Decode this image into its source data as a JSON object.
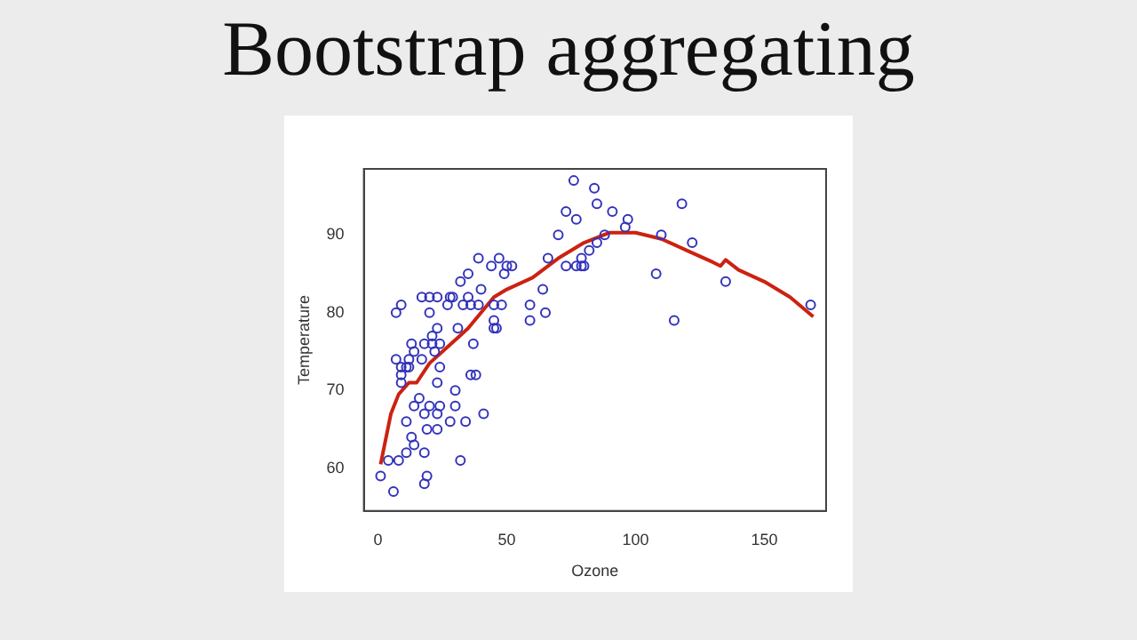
{
  "chart_data": {
    "type": "scatter",
    "title": "Bootstrap aggregating",
    "xlabel": "Ozone",
    "ylabel": "Temperature",
    "xlim": [
      -5.5,
      174
    ],
    "ylim": [
      54.5,
      98.5
    ],
    "xticks": [
      0,
      50,
      100,
      150
    ],
    "yticks": [
      60,
      70,
      80,
      90
    ],
    "grid": false,
    "legend": false,
    "marker": "circle",
    "series": [
      {
        "type": "scatter",
        "color": "#3333bb",
        "x": [
          1,
          4,
          6,
          8,
          7,
          9,
          7,
          9,
          11,
          12,
          12,
          13,
          14,
          9,
          9,
          11,
          11,
          13,
          14,
          14,
          16,
          17,
          17,
          20,
          23,
          20,
          18,
          21,
          21,
          22,
          23,
          24,
          18,
          19,
          20,
          23,
          23,
          24,
          23,
          18,
          19,
          18,
          24,
          27,
          28,
          29,
          28,
          30,
          30,
          31,
          32,
          32,
          35,
          35,
          33,
          34,
          36,
          37,
          36,
          38,
          39,
          40,
          39,
          41,
          44,
          47,
          49,
          50,
          52,
          45,
          48,
          45,
          45,
          46,
          59,
          59,
          64,
          65,
          66,
          76,
          84,
          85,
          73,
          77,
          91,
          118,
          97,
          70,
          88,
          96,
          110,
          122,
          85,
          82,
          79,
          73,
          77,
          79,
          80,
          108,
          135,
          115,
          168
        ],
        "values": [
          59,
          61,
          57,
          61,
          80,
          81,
          74,
          73,
          73,
          73,
          74,
          76,
          75,
          72,
          71,
          66,
          62,
          64,
          63,
          68,
          69,
          74,
          82,
          82,
          82,
          80,
          76,
          77,
          76,
          75,
          78,
          76,
          67,
          65,
          68,
          71,
          67,
          68,
          65,
          62,
          59,
          58,
          73,
          81,
          82,
          82,
          66,
          70,
          68,
          78,
          84,
          61,
          85,
          82,
          81,
          66,
          81,
          76,
          72,
          72,
          87,
          83,
          81,
          67,
          86,
          87,
          85,
          86,
          86,
          81,
          81,
          79,
          78,
          78,
          81,
          79,
          83,
          80,
          87,
          97,
          96,
          94,
          93,
          92,
          93,
          94,
          92,
          90,
          90,
          91,
          90,
          89,
          89,
          88,
          87,
          86,
          86,
          86,
          86,
          85,
          84,
          79,
          81
        ]
      },
      {
        "type": "line",
        "color": "#cc2211",
        "line_style": "solid",
        "marker": "none",
        "x": [
          1,
          5,
          8,
          12,
          15,
          20,
          25,
          30,
          35,
          40,
          45,
          50,
          60,
          70,
          80,
          90,
          100,
          110,
          120,
          130,
          133,
          135,
          140,
          150,
          160,
          169
        ],
        "values": [
          60.5,
          67,
          69.5,
          71,
          71,
          73.5,
          75,
          76.5,
          78,
          80,
          82,
          83,
          84.5,
          87,
          89,
          90.3,
          90.3,
          89.5,
          88,
          86.5,
          86,
          86.8,
          85.5,
          84,
          82,
          79.5
        ]
      }
    ]
  }
}
